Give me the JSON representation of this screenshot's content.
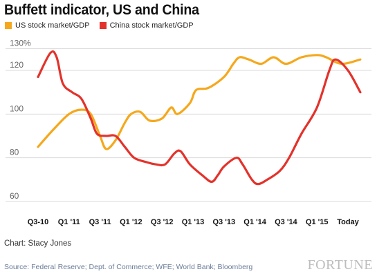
{
  "chart_data": {
    "type": "line",
    "title": "Buffett indicator, US and China",
    "xlabel": "",
    "ylabel": "",
    "x_tick_labels": [
      "Q3-10",
      "Q1 '11",
      "Q3 '11",
      "Q1 '12",
      "Q3 '12",
      "Q1 '13",
      "Q3 '13",
      "Q1 '14",
      "Q3 '14",
      "Q1 '15",
      "Today"
    ],
    "y_ticks": [
      {
        "value": 60,
        "label": "60"
      },
      {
        "value": 80,
        "label": "80"
      },
      {
        "value": 100,
        "label": "100"
      },
      {
        "value": 120,
        "label": "120"
      },
      {
        "value": 130,
        "label": "130%"
      }
    ],
    "ylim": [
      55,
      133
    ],
    "xlim": [
      0,
      10.4
    ],
    "grid": true,
    "legend_position": "top-left",
    "series": [
      {
        "name": "US stock market/GDP",
        "color": "#F5A81C",
        "points": [
          [
            0,
            85
          ],
          [
            0.5,
            93
          ],
          [
            1,
            100
          ],
          [
            1.4,
            102
          ],
          [
            1.7,
            100
          ],
          [
            2,
            90
          ],
          [
            2.2,
            84
          ],
          [
            2.5,
            88
          ],
          [
            2.8,
            96
          ],
          [
            3,
            100
          ],
          [
            3.3,
            101
          ],
          [
            3.6,
            97
          ],
          [
            4,
            98
          ],
          [
            4.3,
            103
          ],
          [
            4.5,
            100
          ],
          [
            4.9,
            105
          ],
          [
            5.1,
            111
          ],
          [
            5.5,
            112
          ],
          [
            6,
            117
          ],
          [
            6.3,
            123
          ],
          [
            6.5,
            126
          ],
          [
            6.8,
            125
          ],
          [
            7.2,
            123
          ],
          [
            7.6,
            126
          ],
          [
            8,
            123
          ],
          [
            8.5,
            126
          ],
          [
            9,
            127
          ],
          [
            9.3,
            126
          ],
          [
            9.8,
            123
          ],
          [
            10.4,
            125
          ]
        ]
      },
      {
        "name": "China stock market/GDP",
        "color": "#E3322B",
        "points": [
          [
            0,
            117
          ],
          [
            0.4,
            128
          ],
          [
            0.6,
            126
          ],
          [
            0.8,
            114
          ],
          [
            1.1,
            110
          ],
          [
            1.4,
            107
          ],
          [
            1.7,
            98
          ],
          [
            1.9,
            91
          ],
          [
            2.2,
            90
          ],
          [
            2.5,
            90
          ],
          [
            2.8,
            85
          ],
          [
            3.1,
            80
          ],
          [
            3.5,
            78
          ],
          [
            3.8,
            77
          ],
          [
            4.1,
            77
          ],
          [
            4.4,
            82
          ],
          [
            4.6,
            83
          ],
          [
            4.9,
            77
          ],
          [
            5.3,
            72
          ],
          [
            5.6,
            69
          ],
          [
            5.8,
            72
          ],
          [
            6,
            76
          ],
          [
            6.4,
            80
          ],
          [
            6.6,
            77
          ],
          [
            6.9,
            70
          ],
          [
            7.1,
            68
          ],
          [
            7.4,
            70
          ],
          [
            7.8,
            74
          ],
          [
            8.1,
            80
          ],
          [
            8.5,
            91
          ],
          [
            9,
            103
          ],
          [
            9.4,
            120
          ],
          [
            9.6,
            125
          ],
          [
            10,
            120
          ],
          [
            10.4,
            110
          ]
        ]
      }
    ]
  },
  "credit": "Chart: Stacy Jones",
  "source": "Source: Federal Reserve; Dept. of Commerce; WFE; World Bank; Bloomberg",
  "brand": "FORTUNE"
}
